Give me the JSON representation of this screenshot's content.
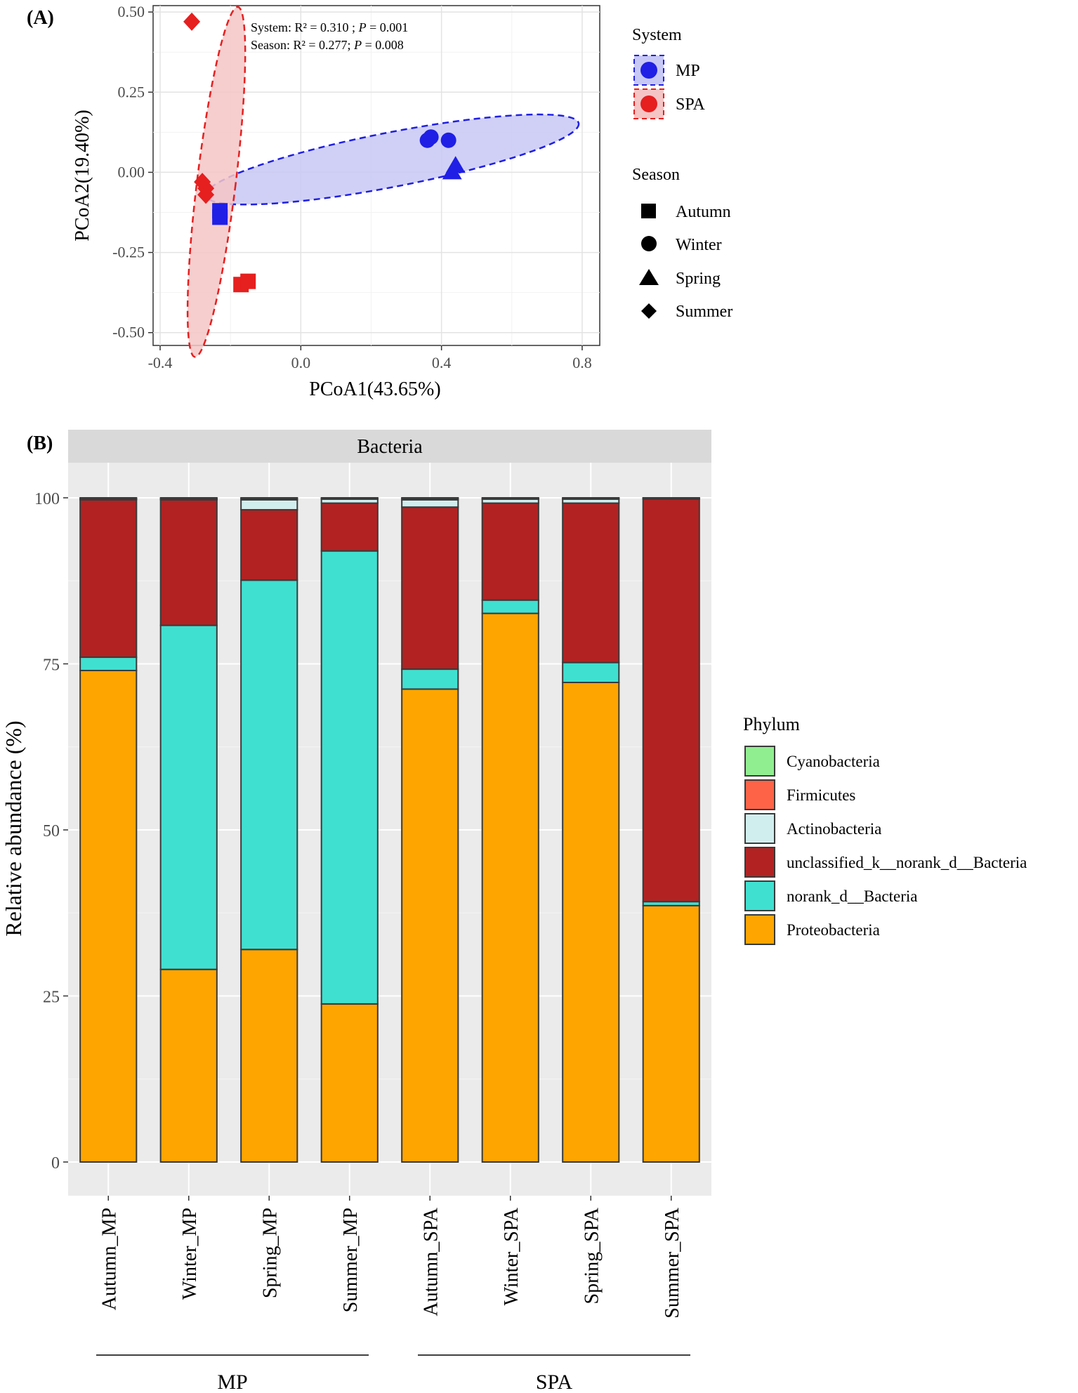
{
  "chart_data": [
    {
      "panel_label": "(A)",
      "type": "scatter",
      "xlabel": "PCoA1(43.65%)",
      "ylabel": "PCoA2(19.40%)",
      "xlim": [
        -0.42,
        0.85
      ],
      "ylim": [
        -0.54,
        0.52
      ],
      "xticks": [
        -0.4,
        0.0,
        0.4,
        0.8
      ],
      "xtick_labels": [
        "-0.4",
        "0.0",
        "0.4",
        "0.8"
      ],
      "yticks": [
        -0.5,
        -0.25,
        0.0,
        0.25,
        0.5
      ],
      "ytick_labels": [
        "-0.50",
        "-0.25",
        "0.00",
        "0.25",
        "0.50"
      ],
      "grid": true,
      "annotations": {
        "line1_prefix": "System: R² = 0.310 ; ",
        "line1_p": "P",
        "line1_suffix": " = 0.001",
        "line2_prefix": "Season:  R² = 0.277; ",
        "line2_p": "P",
        "line2_suffix": " = 0.008"
      },
      "points": [
        {
          "system": "MP",
          "season": "Winter",
          "x": 0.36,
          "y": 0.1
        },
        {
          "system": "MP",
          "season": "Winter",
          "x": 0.37,
          "y": 0.11
        },
        {
          "system": "MP",
          "season": "Winter",
          "x": 0.42,
          "y": 0.1
        },
        {
          "system": "MP",
          "season": "Spring",
          "x": 0.43,
          "y": 0.0
        },
        {
          "system": "MP",
          "season": "Spring",
          "x": 0.44,
          "y": 0.02
        },
        {
          "system": "MP",
          "season": "Autumn",
          "x": -0.23,
          "y": -0.12
        },
        {
          "system": "MP",
          "season": "Autumn",
          "x": -0.23,
          "y": -0.14
        },
        {
          "system": "SPA",
          "season": "Summer",
          "x": -0.31,
          "y": 0.47
        },
        {
          "system": "SPA",
          "season": "Summer",
          "x": -0.28,
          "y": -0.03
        },
        {
          "system": "SPA",
          "season": "Summer",
          "x": -0.27,
          "y": -0.05
        },
        {
          "system": "SPA",
          "season": "Summer",
          "x": -0.27,
          "y": -0.07
        },
        {
          "system": "SPA",
          "season": "Autumn",
          "x": -0.17,
          "y": -0.35
        },
        {
          "system": "SPA",
          "season": "Autumn",
          "x": -0.15,
          "y": -0.34
        }
      ],
      "ellipses": [
        {
          "system": "MP",
          "cx": 0.26,
          "cy": 0.04,
          "rx": 0.54,
          "ry": 0.085,
          "angle_deg": -11,
          "fill": "#c8c8f5",
          "stroke": "#1f1fe6"
        },
        {
          "system": "SPA",
          "cx": -0.24,
          "cy": -0.03,
          "rx": 0.055,
          "ry": 0.55,
          "angle_deg": 7,
          "fill": "#f5c5c5",
          "stroke": "#e61f1f"
        }
      ],
      "legend": {
        "system_title": "System",
        "system_items": [
          {
            "label": "MP",
            "color": "#1f1fe6"
          },
          {
            "label": "SPA",
            "color": "#e61f1f"
          }
        ],
        "season_title": "Season",
        "season_items": [
          {
            "label": "Autumn",
            "shape": "square"
          },
          {
            "label": "Winter",
            "shape": "circle"
          },
          {
            "label": "Spring",
            "shape": "triangle"
          },
          {
            "label": "Summer",
            "shape": "diamond"
          }
        ]
      }
    },
    {
      "panel_label": "(B)",
      "type": "bar",
      "stacked": true,
      "facet_title": "Bacteria",
      "ylabel": "Relative abundance (%)",
      "ylim": [
        0,
        100
      ],
      "yticks": [
        0,
        25,
        50,
        75,
        100
      ],
      "ytick_labels": [
        "0",
        "25",
        "50",
        "75",
        "100"
      ],
      "categories": [
        "Autumn_MP",
        "Winter_MP",
        "Spring_MP",
        "Summer_MP",
        "Autumn_SPA",
        "Winter_SPA",
        "Spring_SPA",
        "Summer_SPA"
      ],
      "groups": [
        {
          "label": "MP",
          "from": 0,
          "to": 3
        },
        {
          "label": "SPA",
          "from": 4,
          "to": 7
        }
      ],
      "series": [
        {
          "name": "Proteobacteria",
          "color": "#ffa500",
          "values": [
            74.0,
            29.0,
            32.0,
            23.8,
            71.2,
            82.6,
            72.2,
            38.6
          ]
        },
        {
          "name": "norank_d__Bacteria",
          "color": "#40e0d0",
          "values": [
            2.0,
            51.8,
            55.6,
            68.2,
            3.0,
            2.0,
            3.0,
            0.6
          ]
        },
        {
          "name": "unclassified_k__norank_d__Bacteria",
          "color": "#b22222",
          "values": [
            23.7,
            18.9,
            10.6,
            7.2,
            24.4,
            14.6,
            24.0,
            60.6
          ]
        },
        {
          "name": "Actinobacteria",
          "color": "#d1eeee",
          "values": [
            0.1,
            0.1,
            1.5,
            0.6,
            1.1,
            0.6,
            0.6,
            0.1
          ]
        },
        {
          "name": "Firmicutes",
          "color": "#ff6347",
          "values": [
            0.1,
            0.1,
            0.2,
            0.1,
            0.2,
            0.1,
            0.1,
            0.05
          ]
        },
        {
          "name": "Cyanobacteria",
          "color": "#90ee90",
          "values": [
            0.1,
            0.1,
            0.1,
            0.1,
            0.1,
            0.1,
            0.1,
            0.05
          ]
        }
      ],
      "legend": {
        "title": "Phylum",
        "items": [
          "Cyanobacteria",
          "Firmicutes",
          "Actinobacteria",
          "unclassified_k__norank_d__Bacteria",
          "norank_d__Bacteria",
          "Proteobacteria"
        ]
      }
    }
  ]
}
